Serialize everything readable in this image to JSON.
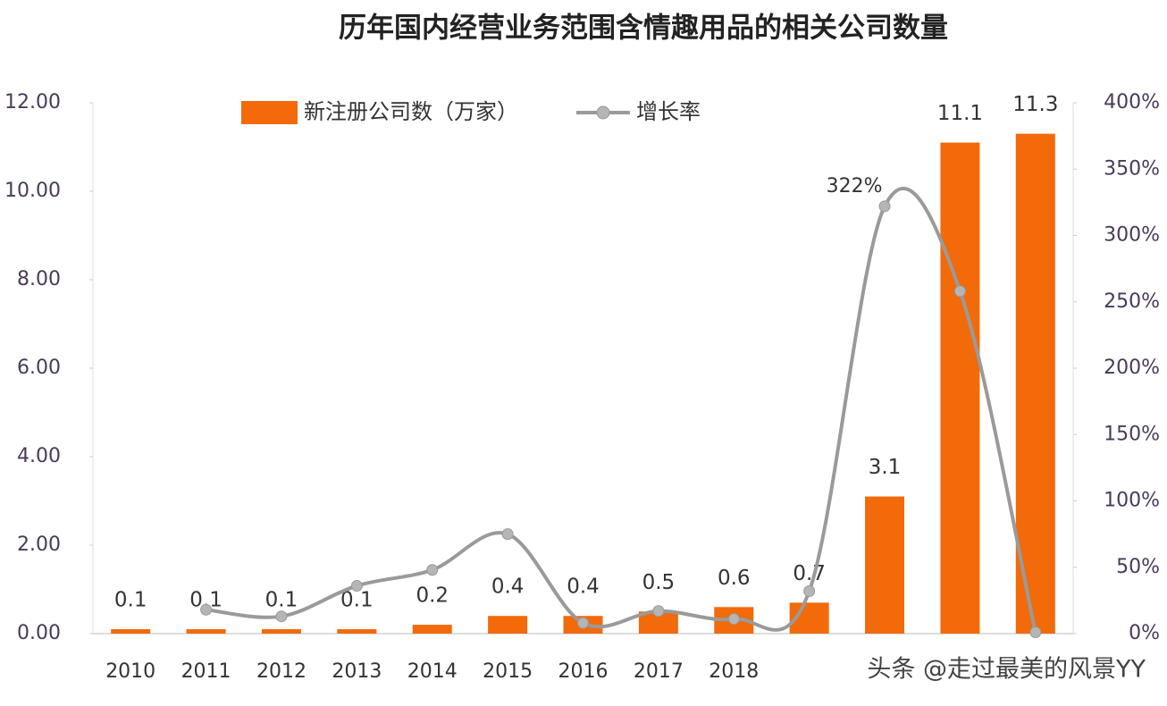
{
  "chart_data": {
    "type": "bar",
    "title": "历年国内经营业务范围含情趣用品的相关公司数量",
    "categories": [
      "2010",
      "2011",
      "2012",
      "2013",
      "2014",
      "2015",
      "2016",
      "2017",
      "2018",
      null,
      null,
      null,
      null
    ],
    "series": [
      {
        "name": "新注册公司数（万家）",
        "color": "#f26a0a",
        "values": [
          0.1,
          0.1,
          0.1,
          0.1,
          0.2,
          0.4,
          0.4,
          0.5,
          0.6,
          0.7,
          3.1,
          11.1,
          11.3
        ]
      },
      {
        "name": "增长率",
        "color": "#9a9a9a",
        "axis": "y2",
        "values": [
          null,
          18,
          13,
          36,
          48,
          75,
          8,
          17,
          11,
          32,
          322,
          258,
          1
        ],
        "value_labels": [
          null,
          null,
          null,
          null,
          null,
          null,
          null,
          null,
          null,
          null,
          "322%",
          null,
          null
        ]
      }
    ],
    "ylim": [
      0,
      12
    ],
    "yticks": [
      {
        "value": 0,
        "label": "0.00"
      },
      {
        "value": 2,
        "label": "2.00"
      },
      {
        "value": 4,
        "label": "4.00"
      },
      {
        "value": 6,
        "label": "6.00"
      },
      {
        "value": 8,
        "label": "8.00"
      },
      {
        "value": 10,
        "label": "10.00"
      },
      {
        "value": 12,
        "label": "12.00"
      }
    ],
    "y2lim": [
      0,
      400
    ],
    "y2ticks": [
      {
        "value": 0,
        "label": "0%"
      },
      {
        "value": 50,
        "label": "50%"
      },
      {
        "value": 100,
        "label": "100%"
      },
      {
        "value": 150,
        "label": "150%"
      },
      {
        "value": 200,
        "label": "200%"
      },
      {
        "value": 250,
        "label": "250%"
      },
      {
        "value": 300,
        "label": "300%"
      },
      {
        "value": 350,
        "label": "350%"
      },
      {
        "value": 400,
        "label": "400%"
      }
    ],
    "watermark": "头条 @走过最美的风景YY"
  }
}
